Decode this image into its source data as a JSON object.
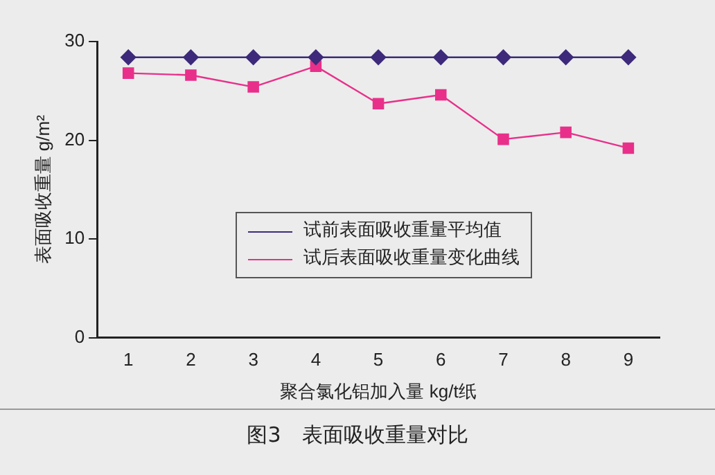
{
  "chart_data": {
    "type": "line",
    "title": "图3　表面吸收重量对比",
    "xlabel": "聚合氯化铝加入量 kg/t纸",
    "ylabel": "表面吸收重量 g/m²",
    "categories": [
      "1",
      "2",
      "3",
      "4",
      "5",
      "6",
      "7",
      "8",
      "9"
    ],
    "ylim": [
      0,
      30
    ],
    "yticks": [
      0,
      10,
      20,
      30
    ],
    "grid": false,
    "legend": "bottom left",
    "series": [
      {
        "name": "试前表面吸收重量平均值",
        "color": "#3d2a7a",
        "marker": "diamond",
        "values": [
          28.4,
          28.4,
          28.4,
          28.4,
          28.4,
          28.4,
          28.4,
          28.4,
          28.4
        ]
      },
      {
        "name": "试后表面吸收重量变化曲线",
        "color": "#e8308a",
        "marker": "square",
        "values": [
          26.8,
          26.6,
          25.4,
          27.5,
          23.7,
          24.6,
          20.1,
          20.8,
          19.2
        ]
      }
    ]
  }
}
